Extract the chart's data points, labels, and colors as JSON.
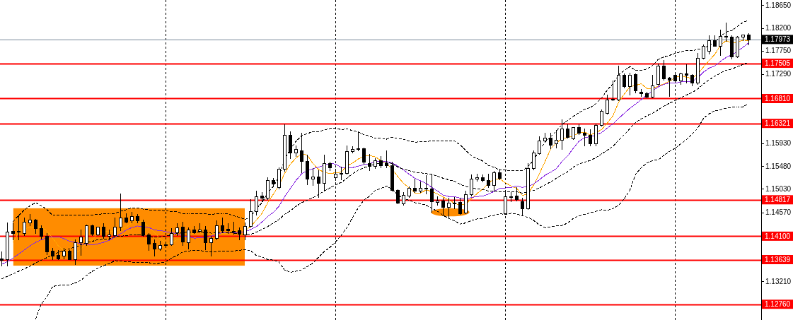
{
  "chart_data": {
    "type": "candlestick",
    "categories": [
      null,
      null,
      null,
      null,
      null,
      null,
      null,
      null,
      null,
      null,
      null,
      null,
      null,
      null,
      null,
      null,
      null,
      null,
      null,
      null,
      null,
      null,
      null,
      null,
      null,
      null,
      null,
      null,
      null,
      null,
      null,
      null,
      null,
      null,
      null,
      null,
      null,
      null,
      null,
      null,
      null,
      null,
      null,
      null,
      null,
      null,
      null,
      null,
      null,
      null,
      null,
      null,
      null,
      null,
      null,
      null,
      null,
      null,
      null,
      null,
      null,
      null,
      null,
      null,
      null,
      null,
      null,
      null,
      null,
      null,
      null,
      null,
      null,
      null,
      null,
      null,
      null,
      null,
      null,
      null,
      null,
      null,
      null,
      null,
      null,
      null,
      null,
      null,
      null,
      null,
      null,
      null,
      null,
      null,
      null,
      null,
      null,
      null,
      null,
      null,
      null,
      null,
      null,
      null,
      null,
      null,
      null,
      null,
      null,
      null,
      null,
      null,
      null,
      null,
      null,
      null,
      null,
      null,
      null,
      null,
      null,
      null,
      null,
      null,
      null,
      null,
      null,
      null,
      null,
      null,
      null,
      null,
      null
    ],
    "ohlc": [
      [
        1.1366,
        1.138,
        1.1352,
        1.1363
      ],
      [
        1.1364,
        1.1437,
        1.1352,
        1.1419
      ],
      [
        1.142,
        1.1437,
        1.1403,
        1.1416
      ],
      [
        1.1419,
        1.1451,
        1.1403,
        1.142
      ],
      [
        1.1416,
        1.1446,
        1.1412,
        1.1439
      ],
      [
        1.1437,
        1.1453,
        1.1432,
        1.1443
      ],
      [
        1.1443,
        1.1444,
        1.1416,
        1.1426
      ],
      [
        1.1426,
        1.1432,
        1.1405,
        1.141
      ],
      [
        1.141,
        1.1416,
        1.1375,
        1.138
      ],
      [
        1.1381,
        1.1387,
        1.1364,
        1.1372
      ],
      [
        1.1373,
        1.1382,
        1.1365,
        1.1366
      ],
      [
        1.1371,
        1.1387,
        1.1366,
        1.1381
      ],
      [
        1.1381,
        1.1382,
        1.1364,
        1.1365
      ],
      [
        1.1365,
        1.1403,
        1.1355,
        1.1398
      ],
      [
        1.1398,
        1.1423,
        1.1373,
        1.1409
      ],
      [
        1.1397,
        1.1433,
        1.1392,
        1.1432
      ],
      [
        1.1432,
        1.1433,
        1.1412,
        1.1414
      ],
      [
        1.1413,
        1.1429,
        1.1412,
        1.1428
      ],
      [
        1.1428,
        1.1435,
        1.1407,
        1.141
      ],
      [
        1.141,
        1.1423,
        1.1403,
        1.1413
      ],
      [
        1.1412,
        1.1447,
        1.1411,
        1.1429
      ],
      [
        1.1429,
        1.1494,
        1.1421,
        1.1447
      ],
      [
        1.1447,
        1.1455,
        1.1437,
        1.1439
      ],
      [
        1.1441,
        1.1458,
        1.1437,
        1.145
      ],
      [
        1.145,
        1.1454,
        1.1437,
        1.1441
      ],
      [
        1.1438,
        1.1442,
        1.141,
        1.1413
      ],
      [
        1.1413,
        1.1416,
        1.1382,
        1.1395
      ],
      [
        1.1396,
        1.1403,
        1.1371,
        1.1386
      ],
      [
        1.1386,
        1.1401,
        1.1383,
        1.1392
      ],
      [
        1.1392,
        1.1397,
        1.1388,
        1.1394
      ],
      [
        1.1394,
        1.1426,
        1.1392,
        1.1416
      ],
      [
        1.1418,
        1.1435,
        1.1412,
        1.1427
      ],
      [
        1.1428,
        1.1439,
        1.1392,
        1.1399
      ],
      [
        1.1398,
        1.1427,
        1.1386,
        1.1423
      ],
      [
        1.1423,
        1.143,
        1.1416,
        1.1418
      ],
      [
        1.142,
        1.1435,
        1.1419,
        1.1423
      ],
      [
        1.1423,
        1.143,
        1.1384,
        1.1398
      ],
      [
        1.1398,
        1.141,
        1.1372,
        1.1407
      ],
      [
        1.1407,
        1.1441,
        1.1404,
        1.1432
      ],
      [
        1.1432,
        1.1447,
        1.1418,
        1.1422
      ],
      [
        1.1424,
        1.1436,
        1.1416,
        1.1422
      ],
      [
        1.142,
        1.1439,
        1.1414,
        1.1419
      ],
      [
        1.1421,
        1.1427,
        1.1404,
        1.1414
      ],
      [
        1.1413,
        1.1437,
        1.1404,
        1.143
      ],
      [
        1.143,
        1.1483,
        1.1428,
        1.1459
      ],
      [
        1.1459,
        1.1499,
        1.1452,
        1.1488
      ],
      [
        1.149,
        1.1497,
        1.1478,
        1.1485
      ],
      [
        1.1485,
        1.1526,
        1.1483,
        1.152
      ],
      [
        1.152,
        1.1525,
        1.151,
        1.1514
      ],
      [
        1.1506,
        1.1546,
        1.1503,
        1.1542
      ],
      [
        1.1542,
        1.163,
        1.1538,
        1.1609
      ],
      [
        1.1609,
        1.1616,
        1.1564,
        1.1574
      ],
      [
        1.1574,
        1.1588,
        1.1567,
        1.1581
      ],
      [
        1.1579,
        1.1613,
        1.1535,
        1.1558
      ],
      [
        1.1558,
        1.157,
        1.1512,
        1.1523
      ],
      [
        1.1523,
        1.1544,
        1.1511,
        1.1528
      ],
      [
        1.1528,
        1.154,
        1.1487,
        1.1515
      ],
      [
        1.1515,
        1.157,
        1.1501,
        1.1554
      ],
      [
        1.1554,
        1.1556,
        1.154,
        1.1545
      ],
      [
        1.1526,
        1.1543,
        1.152,
        1.1533
      ],
      [
        1.1533,
        1.1547,
        1.1522,
        1.1534
      ],
      [
        1.1534,
        1.1588,
        1.1533,
        1.1578
      ],
      [
        1.1578,
        1.1587,
        1.1574,
        1.1582
      ],
      [
        1.1582,
        1.1615,
        1.1579,
        1.1583
      ],
      [
        1.1583,
        1.1584,
        1.1553,
        1.1556
      ],
      [
        1.1554,
        1.1572,
        1.154,
        1.1548
      ],
      [
        1.1548,
        1.1564,
        1.1544,
        1.156
      ],
      [
        1.156,
        1.1567,
        1.1546,
        1.155
      ],
      [
        1.1554,
        1.1579,
        1.1546,
        1.155
      ],
      [
        1.155,
        1.1556,
        1.1499,
        1.1501
      ],
      [
        1.1501,
        1.1502,
        1.1475,
        1.1476
      ],
      [
        1.1474,
        1.1497,
        1.1471,
        1.1491
      ],
      [
        1.149,
        1.1508,
        1.1487,
        1.1505
      ],
      [
        1.1505,
        1.1523,
        1.1497,
        1.15
      ],
      [
        1.15,
        1.1518,
        1.1497,
        1.1505
      ],
      [
        1.1505,
        1.153,
        1.1494,
        1.1503
      ],
      [
        1.1503,
        1.1531,
        1.1458,
        1.1479
      ],
      [
        1.1477,
        1.1488,
        1.1471,
        1.148
      ],
      [
        1.148,
        1.1485,
        1.1451,
        1.1468
      ],
      [
        1.1467,
        1.1485,
        1.1446,
        1.1476
      ],
      [
        1.1476,
        1.1487,
        1.1465,
        1.1474
      ],
      [
        1.1477,
        1.1485,
        1.1453,
        1.1455
      ],
      [
        1.1456,
        1.1499,
        1.1455,
        1.1493
      ],
      [
        1.1492,
        1.1531,
        1.149,
        1.1523
      ],
      [
        1.1523,
        1.1533,
        1.1519,
        1.1526
      ],
      [
        1.1526,
        1.1531,
        1.1517,
        1.152
      ],
      [
        1.152,
        1.1533,
        1.1506,
        1.151
      ],
      [
        1.1511,
        1.1539,
        1.1499,
        1.1535
      ],
      [
        1.1535,
        1.1543,
        1.1522,
        1.1524
      ],
      [
        1.1455,
        1.1501,
        1.1453,
        1.1488
      ],
      [
        1.1488,
        1.1497,
        1.1478,
        1.1489
      ],
      [
        1.149,
        1.1506,
        1.148,
        1.1483
      ],
      [
        1.1479,
        1.1485,
        1.1451,
        1.1465
      ],
      [
        1.1465,
        1.1554,
        1.1464,
        1.1544
      ],
      [
        1.1544,
        1.1579,
        1.1541,
        1.1574
      ],
      [
        1.1573,
        1.1607,
        1.1572,
        1.1598
      ],
      [
        1.1598,
        1.1613,
        1.1595,
        1.1604
      ],
      [
        1.1604,
        1.1614,
        1.1583,
        1.159
      ],
      [
        1.1592,
        1.1619,
        1.1585,
        1.1599
      ],
      [
        1.1599,
        1.164,
        1.1581,
        1.1622
      ],
      [
        1.1622,
        1.163,
        1.1604,
        1.1605
      ],
      [
        1.1603,
        1.1625,
        1.1601,
        1.1624
      ],
      [
        1.1624,
        1.163,
        1.1611,
        1.1614
      ],
      [
        1.1614,
        1.1622,
        1.1589,
        1.1609
      ],
      [
        1.1609,
        1.162,
        1.1589,
        1.1592
      ],
      [
        1.1592,
        1.1631,
        1.1589,
        1.1629
      ],
      [
        1.1629,
        1.166,
        1.1627,
        1.1657
      ],
      [
        1.1653,
        1.1689,
        1.1651,
        1.1679
      ],
      [
        1.1679,
        1.1717,
        1.1677,
        1.168
      ],
      [
        1.1679,
        1.1746,
        1.1677,
        1.1727
      ],
      [
        1.1727,
        1.173,
        1.1702,
        1.1706
      ],
      [
        1.1706,
        1.1732,
        1.1689,
        1.1727
      ],
      [
        1.1729,
        1.173,
        1.1693,
        1.1697
      ],
      [
        1.1694,
        1.17,
        1.1686,
        1.1691
      ],
      [
        1.1691,
        1.1694,
        1.1683,
        1.1684
      ],
      [
        1.1684,
        1.1727,
        1.1683,
        1.1707
      ],
      [
        1.1709,
        1.175,
        1.1708,
        1.1746
      ],
      [
        1.1746,
        1.1757,
        1.1718,
        1.1721
      ],
      [
        1.1722,
        1.1723,
        1.1686,
        1.1718
      ],
      [
        1.1727,
        1.1732,
        1.1714,
        1.1717
      ],
      [
        1.1717,
        1.1732,
        1.1709,
        1.173
      ],
      [
        1.173,
        1.1748,
        1.1712,
        1.1728
      ],
      [
        1.1728,
        1.1729,
        1.1707,
        1.1712
      ],
      [
        1.1712,
        1.177,
        1.1709,
        1.1761
      ],
      [
        1.1761,
        1.1787,
        1.1759,
        1.1785
      ],
      [
        1.1775,
        1.1805,
        1.1769,
        1.1796
      ],
      [
        1.1796,
        1.1805,
        1.1784,
        1.1785
      ],
      [
        1.1785,
        1.1817,
        1.1766,
        1.1804
      ],
      [
        1.1804,
        1.183,
        1.1794,
        1.1803
      ],
      [
        1.1803,
        1.1805,
        1.176,
        1.1764
      ],
      [
        1.1764,
        1.1804,
        1.1762,
        1.1803
      ],
      [
        1.1802,
        1.1807,
        1.1796,
        1.1807
      ],
      [
        1.1807,
        1.181,
        1.1787,
        1.17973
      ]
    ],
    "series": [
      {
        "type": "line",
        "color": "#ffa500",
        "values": [
          null,
          null,
          1.1398,
          1.1418,
          1.1425,
          1.1427,
          1.1429,
          1.1428,
          1.142,
          1.1406,
          1.1391,
          1.1382,
          1.1373,
          1.1376,
          1.1384,
          1.1397,
          1.1404,
          1.1416,
          1.1419,
          1.1419,
          1.1419,
          1.1425,
          1.1428,
          1.1436,
          1.1441,
          1.1438,
          1.1428,
          1.1417,
          1.1405,
          1.1396,
          1.1397,
          1.1403,
          1.1406,
          1.1412,
          1.1417,
          1.1418,
          1.1412,
          1.1414,
          1.1416,
          1.1416,
          1.1416,
          1.142,
          1.1422,
          1.1421,
          1.1429,
          1.1442,
          1.1455,
          1.1476,
          1.1493,
          1.151,
          1.1534,
          1.1552,
          1.1564,
          1.1573,
          1.1569,
          1.1553,
          1.1541,
          1.1536,
          1.1533,
          1.1535,
          1.1536,
          1.1549,
          1.1554,
          1.1562,
          1.1567,
          1.1569,
          1.1566,
          1.1559,
          1.1553,
          1.1542,
          1.1527,
          1.1514,
          1.1505,
          1.1495,
          1.1495,
          1.1501,
          1.1498,
          1.1493,
          1.1487,
          1.1481,
          1.1475,
          1.1471,
          1.1473,
          1.1484,
          1.1494,
          1.1503,
          1.1514,
          1.1523,
          1.1523,
          1.1515,
          1.1509,
          1.1504,
          1.149,
          1.1494,
          1.1511,
          1.1533,
          1.1557,
          1.1582,
          1.1593,
          1.1603,
          1.1604,
          1.1608,
          1.1613,
          1.1615,
          1.1609,
          1.1614,
          1.162,
          1.1633,
          1.1647,
          1.1674,
          1.169,
          1.1704,
          1.1707,
          1.171,
          1.1701,
          1.1701,
          1.1705,
          1.171,
          1.1715,
          1.1722,
          1.1726,
          1.1723,
          1.1721,
          1.173,
          1.1743,
          1.1756,
          1.1768,
          1.1786,
          1.1795,
          1.179,
          1.1792,
          1.1796,
          1.1795
        ]
      },
      {
        "type": "line",
        "color": "#8a2be2",
        "values": [
          1.1355,
          1.136,
          1.1367,
          1.1375,
          1.1383,
          1.1391,
          1.1398,
          1.1403,
          1.1407,
          1.1409,
          1.1409,
          1.1405,
          1.14,
          1.1398,
          1.1395,
          1.1394,
          1.1393,
          1.1395,
          1.1398,
          1.1402,
          1.1408,
          1.1415,
          1.1422,
          1.1427,
          1.143,
          1.1428,
          1.1427,
          1.1422,
          1.1421,
          1.1419,
          1.1417,
          1.1415,
          1.1411,
          1.1409,
          1.1406,
          1.1407,
          1.1408,
          1.141,
          1.1414,
          1.1417,
          1.1417,
          1.1416,
          1.1418,
          1.1419,
          1.1423,
          1.1429,
          1.1438,
          1.1449,
          1.1457,
          1.1469,
          1.1488,
          1.1504,
          1.152,
          1.1533,
          1.1539,
          1.1543,
          1.1546,
          1.155,
          1.1553,
          1.1552,
          1.1545,
          1.1545,
          1.1545,
          1.1548,
          1.1551,
          1.1553,
          1.1557,
          1.1557,
          1.1557,
          1.1554,
          1.1548,
          1.154,
          1.1532,
          1.1524,
          1.1519,
          1.1514,
          1.1506,
          1.1499,
          1.1491,
          1.1488,
          1.1488,
          1.1485,
          1.1483,
          1.1486,
          1.1488,
          1.1489,
          1.1493,
          1.1498,
          1.1504,
          1.1505,
          1.1506,
          1.1509,
          1.1506,
          1.1508,
          1.1513,
          1.1521,
          1.153,
          1.1536,
          1.1543,
          1.1557,
          1.1568,
          1.1583,
          1.1597,
          1.1604,
          1.1606,
          1.1609,
          1.1614,
          1.1623,
          1.1631,
          1.1642,
          1.1652,
          1.1662,
          1.167,
          1.1679,
          1.1688,
          1.1696,
          1.1704,
          1.1709,
          1.1712,
          1.1711,
          1.1714,
          1.1714,
          1.1715,
          1.1722,
          1.1733,
          1.1741,
          1.1745,
          1.1754,
          1.1762,
          1.1767,
          1.1774,
          1.1782,
          1.1791
        ]
      },
      {
        "type": "line",
        "color": "#000000",
        "line_style": "dashed",
        "values": [
          null,
          null,
          1.1439,
          1.1451,
          1.1462,
          1.147,
          1.1476,
          1.147,
          1.1462,
          1.1451,
          1.1451,
          1.1451,
          1.1451,
          1.1451,
          1.1451,
          1.1451,
          1.1452,
          1.1453,
          1.1454,
          1.1455,
          1.1455,
          1.1459,
          1.1462,
          1.1466,
          1.1466,
          1.1463,
          1.1462,
          1.1461,
          1.1461,
          1.146,
          1.1458,
          1.1458,
          1.1454,
          1.1455,
          1.1455,
          1.1454,
          1.1454,
          1.1453,
          1.1454,
          1.1455,
          1.1454,
          1.145,
          1.1447,
          1.1443,
          1.1448,
          1.1465,
          1.1476,
          1.1495,
          1.1508,
          1.1527,
          1.1562,
          1.1581,
          1.1597,
          1.1608,
          1.1612,
          1.1616,
          1.1616,
          1.1619,
          1.1622,
          1.1622,
          1.162,
          1.1621,
          1.1618,
          1.1615,
          1.161,
          1.1607,
          1.1603,
          1.1603,
          1.1601,
          1.1605,
          1.1602,
          1.1601,
          1.1597,
          1.1595,
          1.1596,
          1.1596,
          1.1598,
          1.1597,
          1.1598,
          1.1597,
          1.1597,
          1.159,
          1.1579,
          1.1568,
          1.1563,
          1.1558,
          1.1549,
          1.1546,
          1.154,
          1.154,
          1.1539,
          1.1539,
          1.1539,
          1.1547,
          1.156,
          1.1579,
          1.1595,
          1.1606,
          1.1617,
          1.163,
          1.1638,
          1.1646,
          1.1653,
          1.166,
          1.1663,
          1.1671,
          1.1682,
          1.1698,
          1.171,
          1.1728,
          1.1736,
          1.1744,
          1.1736,
          1.1737,
          1.1739,
          1.1746,
          1.1758,
          1.1763,
          1.1766,
          1.177,
          1.1773,
          1.1776,
          1.1775,
          1.1778,
          1.1779,
          1.1786,
          1.1792,
          1.1804,
          1.1812,
          1.1815,
          1.1823,
          1.1831,
          1.1835
        ]
      },
      {
        "type": "line",
        "color": "#000000",
        "line_style": "dashed",
        "values": [
          1.1326,
          1.1331,
          1.1336,
          1.1341,
          1.1346,
          1.1351,
          1.1357,
          1.1363,
          1.1368,
          1.1373,
          1.1378,
          1.1382,
          1.1385,
          1.1389,
          1.1393,
          1.1397,
          1.14,
          1.1403,
          1.1404,
          1.1405,
          1.1409,
          1.141,
          1.1411,
          1.1413,
          1.1413,
          1.1411,
          1.141,
          1.1408,
          1.1409,
          1.141,
          1.1413,
          1.1415,
          1.1417,
          1.1418,
          1.1418,
          1.1418,
          1.1417,
          1.1416,
          1.1417,
          1.1418,
          1.1417,
          1.1416,
          1.1415,
          1.1414,
          1.1414,
          1.1418,
          1.1423,
          1.1429,
          1.1436,
          1.1443,
          1.1453,
          1.146,
          1.1469,
          1.1476,
          1.1481,
          1.1486,
          1.1492,
          1.1499,
          1.1505,
          1.1511,
          1.1516,
          1.1524,
          1.1533,
          1.154,
          1.1545,
          1.1548,
          1.1552,
          1.1553,
          1.1555,
          1.1553,
          1.1546,
          1.1542,
          1.1539,
          1.1536,
          1.1535,
          1.1533,
          1.1532,
          1.1528,
          1.1524,
          1.1521,
          1.1518,
          1.1512,
          1.1508,
          1.1505,
          1.1503,
          1.1502,
          1.1499,
          1.1499,
          1.1497,
          1.1497,
          1.1497,
          1.1497,
          1.1495,
          1.1497,
          1.15,
          1.1505,
          1.1511,
          1.1517,
          1.1524,
          1.1531,
          1.1537,
          1.1546,
          1.1552,
          1.1556,
          1.1559,
          1.1565,
          1.1572,
          1.1579,
          1.1587,
          1.1599,
          1.161,
          1.1622,
          1.1634,
          1.1641,
          1.1647,
          1.1652,
          1.1659,
          1.1666,
          1.1672,
          1.1677,
          1.1683,
          1.1688,
          1.1693,
          1.17,
          1.171,
          1.1718,
          1.1725,
          1.1731,
          1.1737,
          1.1739,
          1.1744,
          1.1748,
          1.1753
        ]
      },
      {
        "type": "line",
        "color": "#000000",
        "line_style": "dashed",
        "values": [
          null,
          null,
          null,
          null,
          null,
          null,
          1.1247,
          1.1277,
          1.1291,
          1.1311,
          1.1313,
          1.1314,
          1.1314,
          1.1318,
          1.1323,
          1.1333,
          1.1341,
          1.1347,
          1.1352,
          1.1356,
          1.1362,
          1.1361,
          1.136,
          1.1359,
          1.1359,
          1.1359,
          1.1358,
          1.1355,
          1.1357,
          1.136,
          1.1367,
          1.1372,
          1.1379,
          1.1381,
          1.1382,
          1.1382,
          1.138,
          1.1379,
          1.138,
          1.138,
          1.138,
          1.1381,
          1.1382,
          1.1384,
          1.1381,
          1.1372,
          1.1369,
          1.1364,
          1.1363,
          1.1359,
          1.1343,
          1.1339,
          1.1341,
          1.1344,
          1.135,
          1.1357,
          1.1369,
          1.138,
          1.1388,
          1.1399,
          1.1412,
          1.1427,
          1.1447,
          1.1466,
          1.1481,
          1.1489,
          1.15,
          1.1504,
          1.1509,
          1.1502,
          1.1491,
          1.1484,
          1.1481,
          1.1476,
          1.1474,
          1.1471,
          1.1465,
          1.1459,
          1.1451,
          1.1445,
          1.144,
          1.1434,
          1.1436,
          1.1441,
          1.1444,
          1.1445,
          1.1449,
          1.1451,
          1.1454,
          1.1453,
          1.1455,
          1.1454,
          1.145,
          1.1447,
          1.1441,
          1.1432,
          1.1427,
          1.1428,
          1.1431,
          1.1431,
          1.1436,
          1.1445,
          1.145,
          1.1453,
          1.1456,
          1.1459,
          1.1462,
          1.1461,
          1.1464,
          1.1471,
          1.1484,
          1.1501,
          1.1532,
          1.1545,
          1.1554,
          1.1559,
          1.156,
          1.1569,
          1.1577,
          1.1583,
          1.1592,
          1.16,
          1.1611,
          1.1623,
          1.1642,
          1.1651,
          1.1657,
          1.1659,
          1.1662,
          1.1664,
          1.1665,
          1.1665,
          1.1671
        ]
      }
    ],
    "ylim": [
      1.1245,
      1.1875
    ],
    "yticks": [
      {
        "value": 1.1865,
        "label": "1.18650"
      },
      {
        "value": 1.182,
        "label": "1.18200"
      },
      {
        "value": 1.1775,
        "label": "1.17750"
      },
      {
        "value": 1.1729,
        "label": "1.17290"
      },
      {
        "value": 1.1593,
        "label": "1.15930"
      },
      {
        "value": 1.1548,
        "label": "1.15480"
      },
      {
        "value": 1.1503,
        "label": "1.15030"
      },
      {
        "value": 1.1457,
        "label": "1.14570"
      },
      {
        "value": 1.1321,
        "label": "1.13210"
      }
    ],
    "ref_lines": [
      {
        "axis": "y",
        "value": 1.17973,
        "label": "1.17973",
        "color": "#778899"
      },
      {
        "axis": "y",
        "value": 1.17505,
        "label": "1.17505",
        "color": "#ff0000"
      },
      {
        "axis": "y",
        "value": 1.1681,
        "label": "1.16810",
        "color": "#ff0000"
      },
      {
        "axis": "y",
        "value": 1.16321,
        "label": "1.16321",
        "color": "#ff0000"
      },
      {
        "axis": "y",
        "value": 1.14817,
        "label": "1.14817",
        "color": "#ff0000"
      },
      {
        "axis": "y",
        "value": 1.141,
        "label": "1.14100",
        "color": "#ff0000"
      },
      {
        "axis": "y",
        "value": 1.13639,
        "label": "1.13639",
        "color": "#ff0000"
      },
      {
        "axis": "y",
        "value": 1.1276,
        "label": "1.12760",
        "color": "#ff0000"
      }
    ]
  }
}
